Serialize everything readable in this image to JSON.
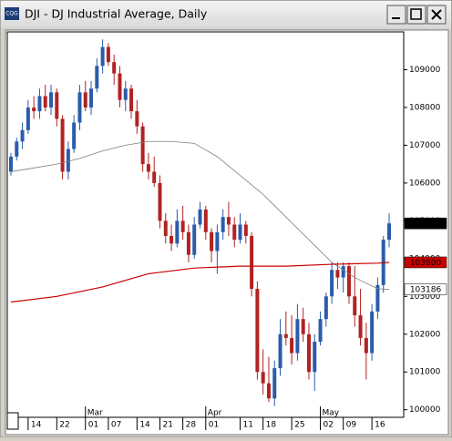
{
  "app_icon": "CQG",
  "chart_data": {
    "type": "candlestick",
    "title": "DJI - DJ Industrial Average, Daily",
    "ylim": [
      99800,
      110000
    ],
    "yticks": [
      100000,
      101000,
      102000,
      103000,
      104000,
      105000,
      106000,
      107000,
      108000,
      109000
    ],
    "grid": false,
    "up_color": "#2a5caa",
    "down_color": "#b22222",
    "xlim": [
      0,
      66
    ],
    "xticks": [
      {
        "value": 3,
        "label": "14"
      },
      {
        "value": 8,
        "label": "22"
      },
      {
        "value": 13,
        "label": "01"
      },
      {
        "value": 17,
        "label": "07"
      },
      {
        "value": 22,
        "label": "14"
      },
      {
        "value": 26,
        "label": "21"
      },
      {
        "value": 30,
        "label": "28"
      },
      {
        "value": 34,
        "label": "01"
      },
      {
        "value": 40,
        "label": "11"
      },
      {
        "value": 44,
        "label": "18"
      },
      {
        "value": 49,
        "label": "25"
      },
      {
        "value": 54,
        "label": "02"
      },
      {
        "value": 58,
        "label": "09"
      },
      {
        "value": 63,
        "label": "16"
      }
    ],
    "month_ticks": [
      {
        "value": 13,
        "label": "Mar"
      },
      {
        "value": 34,
        "label": "Apr"
      },
      {
        "value": 54,
        "label": "May"
      }
    ],
    "open": [
      106300,
      106700,
      107100,
      107400,
      108000,
      107900,
      108300,
      108000,
      108400,
      107700,
      106300,
      106900,
      107600,
      108400,
      108000,
      108500,
      109100,
      109600,
      109200,
      108900,
      108200,
      108500,
      107900,
      107500,
      106500,
      106300,
      106000,
      105000,
      104600,
      104400,
      105000,
      104700,
      104100,
      104900,
      105300,
      104700,
      104200,
      104700,
      105100,
      104900,
      104500,
      104900,
      104600,
      103200,
      101000,
      100700,
      100300,
      101100,
      102000,
      101900,
      101500,
      102400,
      102000,
      101000,
      101800,
      102400,
      103000,
      103700,
      103500,
      103800,
      103000,
      102500,
      101900,
      101500,
      102600,
      103300,
      104500
    ],
    "high": [
      106800,
      107200,
      107600,
      108200,
      108300,
      108500,
      108600,
      108600,
      108500,
      107800,
      107100,
      107800,
      108600,
      108700,
      108700,
      109300,
      109800,
      109700,
      109400,
      109100,
      108700,
      108600,
      108200,
      107600,
      106800,
      106700,
      106200,
      105200,
      104900,
      105300,
      105400,
      104900,
      105100,
      105500,
      105400,
      104800,
      104900,
      105300,
      105500,
      105100,
      105200,
      105000,
      104700,
      103400,
      101600,
      101400,
      101300,
      102400,
      102600,
      102500,
      102800,
      102700,
      102300,
      102000,
      102600,
      103100,
      103900,
      103900,
      103900,
      103900,
      103800,
      103200,
      102300,
      102800,
      103500,
      104600,
      105200
    ],
    "low": [
      106200,
      106600,
      106900,
      107300,
      107700,
      107700,
      107900,
      107800,
      107500,
      106100,
      106100,
      106800,
      107400,
      107900,
      107800,
      108400,
      108900,
      109100,
      108600,
      108000,
      107900,
      107700,
      107300,
      106300,
      106100,
      105900,
      104800,
      104400,
      104200,
      104300,
      104500,
      103900,
      104000,
      104800,
      104500,
      103900,
      103600,
      104500,
      104600,
      104300,
      104400,
      104400,
      103000,
      100800,
      100400,
      100200,
      100100,
      100900,
      101700,
      101200,
      101300,
      101800,
      100800,
      100500,
      101700,
      102200,
      102800,
      103200,
      103100,
      102800,
      102200,
      101700,
      100800,
      101300,
      102400,
      103100,
      104300
    ],
    "close": [
      106700,
      107100,
      107400,
      108000,
      107900,
      108300,
      108000,
      108400,
      107700,
      106300,
      106900,
      107600,
      108400,
      108000,
      108500,
      109100,
      109600,
      109200,
      108900,
      108200,
      108500,
      107900,
      107500,
      106500,
      106300,
      106000,
      105000,
      104600,
      104400,
      105000,
      104700,
      104100,
      104900,
      105300,
      104700,
      104200,
      104700,
      105100,
      104900,
      104500,
      104900,
      104600,
      103200,
      101000,
      100700,
      100300,
      101100,
      102000,
      101900,
      101500,
      102400,
      102000,
      101000,
      101800,
      102400,
      103000,
      103700,
      103500,
      103800,
      103000,
      102500,
      101900,
      101500,
      102600,
      103300,
      104500,
      104932
    ],
    "close_label": {
      "value": 104932,
      "color": "#000000",
      "text_color": "#ffffff"
    },
    "series": [
      {
        "name": "MA fast",
        "color": "#808080",
        "label_color": "#ffffff",
        "text_color": "#000000",
        "x": [
          0,
          4,
          8,
          12,
          16,
          20,
          24,
          28,
          32,
          36,
          40,
          44,
          48,
          52,
          56,
          60,
          64,
          66
        ],
        "values": [
          106300,
          106400,
          106500,
          106650,
          106850,
          107000,
          107100,
          107100,
          107050,
          106700,
          106200,
          105700,
          105100,
          104500,
          103900,
          103500,
          103200,
          103186
        ]
      },
      {
        "name": "MA slow",
        "color": "#cc0000",
        "label_color": "#cc0000",
        "text_color": "#ffffff",
        "x": [
          0,
          8,
          16,
          24,
          32,
          40,
          48,
          56,
          64,
          66
        ],
        "values": [
          102850,
          103000,
          103250,
          103600,
          103750,
          103800,
          103800,
          103850,
          103880,
          103900
        ]
      }
    ]
  }
}
